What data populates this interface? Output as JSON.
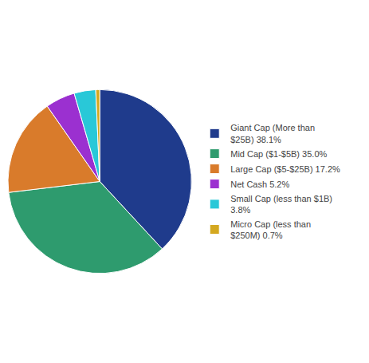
{
  "chart_data": {
    "type": "pie",
    "categories": [
      "Giant Cap (More than\n$25B) 38.1%",
      "Mid Cap ($1-$5B) 35.0%",
      "Large Cap ($5-$25B) 17.2%",
      "Net Cash 5.2%",
      "Small Cap (less than $1B)\n3.8%",
      "Micro Cap (less than\n$250M) 0.7%"
    ],
    "values": [
      38.1,
      35.0,
      17.2,
      5.2,
      3.8,
      0.7
    ],
    "colors": [
      "#1f3b8c",
      "#2e9b6e",
      "#d97b2b",
      "#9b30d0",
      "#29c8d8",
      "#d4a820"
    ],
    "legend": "right"
  }
}
